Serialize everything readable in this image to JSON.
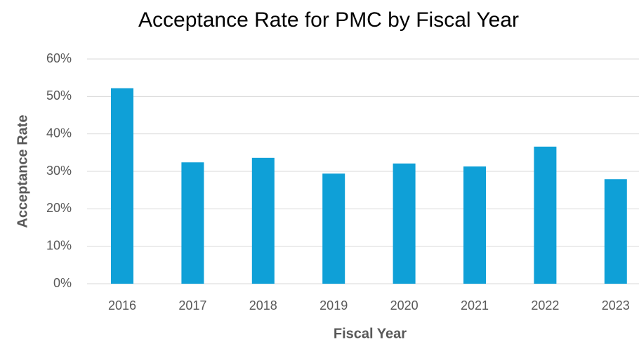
{
  "chart_data": {
    "type": "bar",
    "title": "Acceptance Rate for PMC by Fiscal Year",
    "x_label": "Fiscal Year",
    "y_label": "Acceptance Rate",
    "categories": [
      "2016",
      "2017",
      "2018",
      "2019",
      "2020",
      "2021",
      "2022",
      "2023"
    ],
    "values": [
      52.2,
      32.4,
      33.6,
      29.4,
      32.1,
      31.3,
      36.6,
      27.9
    ],
    "color": "#0fa0d7",
    "ylim": [
      0,
      60
    ],
    "yticks": [
      {
        "value": 0,
        "label": "0%"
      },
      {
        "value": 10,
        "label": "10%"
      },
      {
        "value": 20,
        "label": "20%"
      },
      {
        "value": 30,
        "label": "30%"
      },
      {
        "value": 40,
        "label": "40%"
      },
      {
        "value": 50,
        "label": "50%"
      },
      {
        "value": 60,
        "label": "60%"
      }
    ],
    "grid": true
  }
}
